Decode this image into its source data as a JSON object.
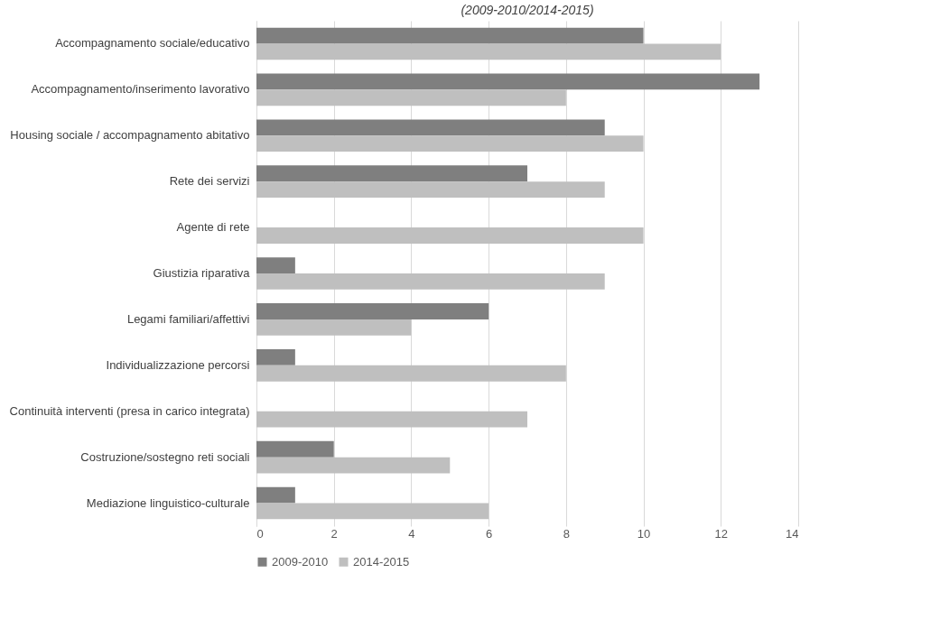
{
  "chart_data": {
    "type": "bar",
    "orientation": "horizontal",
    "title": "(2009-2010/2014-2015)",
    "categories": [
      "Accompagnamento sociale/educativo",
      "Accompagnamento/inserimento lavorativo",
      "Housing sociale / accompagnamento abitativo",
      "Rete dei servizi",
      "Agente di rete",
      "Giustizia riparativa",
      "Legami familiari/affettivi",
      "Individualizzazione percorsi",
      "Continuità interventi (presa in carico integrata)",
      "Costruzione/sostegno reti sociali",
      "Mediazione linguistico-culturale"
    ],
    "series": [
      {
        "name": "2009-2010",
        "color": "#7f7f7f",
        "values": [
          10,
          13,
          9,
          7,
          null,
          1,
          6,
          1,
          null,
          2,
          1
        ]
      },
      {
        "name": "2014-2015",
        "color": "#bfbfbf",
        "values": [
          12,
          8,
          10,
          9,
          10,
          9,
          4,
          8,
          7,
          5,
          6
        ]
      }
    ],
    "xlim": [
      0,
      14
    ],
    "xticks": [
      0,
      2,
      4,
      6,
      8,
      10,
      12,
      14
    ],
    "grid": "x",
    "legend": "bottom"
  }
}
